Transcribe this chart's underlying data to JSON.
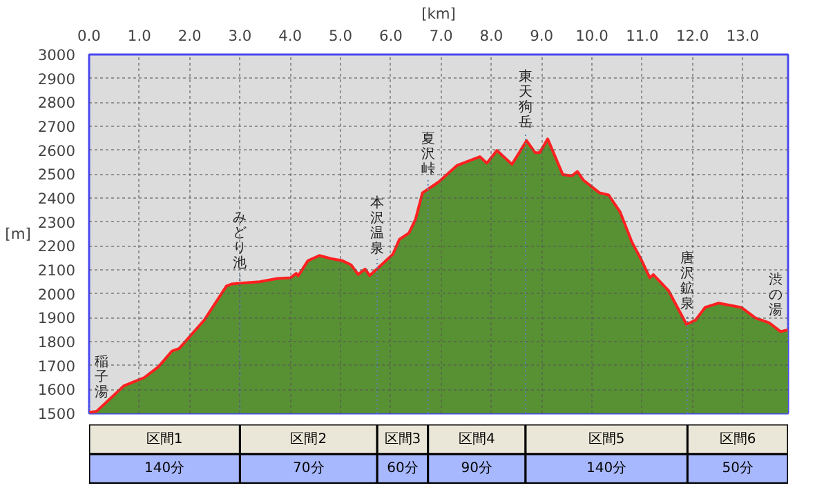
{
  "chart_data": {
    "type": "area",
    "xlabel": "[km]",
    "ylabel": "[m]",
    "x": [
      0.0,
      0.15,
      0.69,
      1.1,
      1.38,
      1.65,
      1.79,
      2.29,
      2.73,
      2.84,
      2.98,
      3.39,
      3.75,
      4.01,
      4.12,
      4.16,
      4.35,
      4.58,
      4.81,
      5.04,
      5.21,
      5.35,
      5.49,
      5.58,
      5.72,
      6.04,
      6.17,
      6.36,
      6.49,
      6.63,
      6.95,
      7.32,
      7.77,
      7.91,
      8.11,
      8.41,
      8.7,
      8.87,
      8.96,
      9.12,
      9.42,
      9.6,
      9.71,
      9.83,
      10.15,
      10.33,
      10.56,
      10.79,
      10.97,
      11.15,
      11.22,
      11.52,
      11.88,
      12.06,
      12.25,
      12.52,
      12.97,
      13.25,
      13.53,
      13.75,
      13.9
    ],
    "series": [
      {
        "color": "#589034",
        "values": [
          1504,
          1509,
          1615,
          1650,
          1695,
          1761,
          1771,
          1890,
          2032,
          2041,
          2044,
          2050,
          2064,
          2067,
          2085,
          2075,
          2138,
          2160,
          2147,
          2138,
          2121,
          2081,
          2103,
          2076,
          2103,
          2165,
          2227,
          2254,
          2310,
          2422,
          2467,
          2537,
          2573,
          2546,
          2599,
          2541,
          2640,
          2590,
          2590,
          2647,
          2498,
          2493,
          2511,
          2475,
          2422,
          2413,
          2342,
          2218,
          2147,
          2067,
          2080,
          2014,
          1872,
          1890,
          1943,
          1961,
          1943,
          1899,
          1878,
          1842,
          1849
        ]
      }
    ],
    "xlim": [
      0,
      13.9
    ],
    "ylim": [
      1500,
      3000
    ],
    "xticks": [
      {
        "value": 0,
        "label": "0.0"
      },
      {
        "value": 1,
        "label": "1.0"
      },
      {
        "value": 2,
        "label": "2.0"
      },
      {
        "value": 3,
        "label": "3.0"
      },
      {
        "value": 4,
        "label": "4.0"
      },
      {
        "value": 5,
        "label": "5.0"
      },
      {
        "value": 6,
        "label": "6.0"
      },
      {
        "value": 7,
        "label": "7.0"
      },
      {
        "value": 8,
        "label": "8.0"
      },
      {
        "value": 9,
        "label": "9.0"
      },
      {
        "value": 10,
        "label": "10.0"
      },
      {
        "value": 11,
        "label": "11.0"
      },
      {
        "value": 12,
        "label": "12.0"
      },
      {
        "value": 13,
        "label": "13.0"
      }
    ],
    "yticks": [
      1500,
      1600,
      1700,
      1800,
      1900,
      2000,
      2100,
      2200,
      2300,
      2400,
      2500,
      2600,
      2700,
      2800,
      2900,
      3000
    ],
    "grid": true,
    "ref_lines": [
      {
        "axis": "x",
        "value": 0,
        "label": "稲子湯",
        "color": "#5a86b0",
        "line_style": "dotted"
      },
      {
        "axis": "x",
        "value": 3.0,
        "label": "みどり池",
        "color": "#5a86b0",
        "line_style": "dotted"
      },
      {
        "axis": "x",
        "value": 5.73,
        "label": "本沢温泉",
        "color": "#5a86b0",
        "line_style": "dotted"
      },
      {
        "axis": "x",
        "value": 6.74,
        "label": "夏沢峠",
        "color": "#5a86b0",
        "line_style": "dotted"
      },
      {
        "axis": "x",
        "value": 8.68,
        "label": "東天狗岳",
        "color": "#5a86b0",
        "line_style": "dotted"
      },
      {
        "axis": "x",
        "value": 11.9,
        "label": "唐沢鉱泉",
        "color": "#5a86b0",
        "line_style": "dotted"
      },
      {
        "axis": "x",
        "value": 13.9,
        "label": "渋の湯",
        "color": "#5a86b0",
        "line_style": "dotted"
      }
    ],
    "annotations": [
      "区間1",
      "140分",
      "区間2",
      "70分",
      "区間3",
      "60分",
      "区間4",
      "90分",
      "区間5",
      "140分",
      "区間6",
      "50分"
    ]
  }
}
